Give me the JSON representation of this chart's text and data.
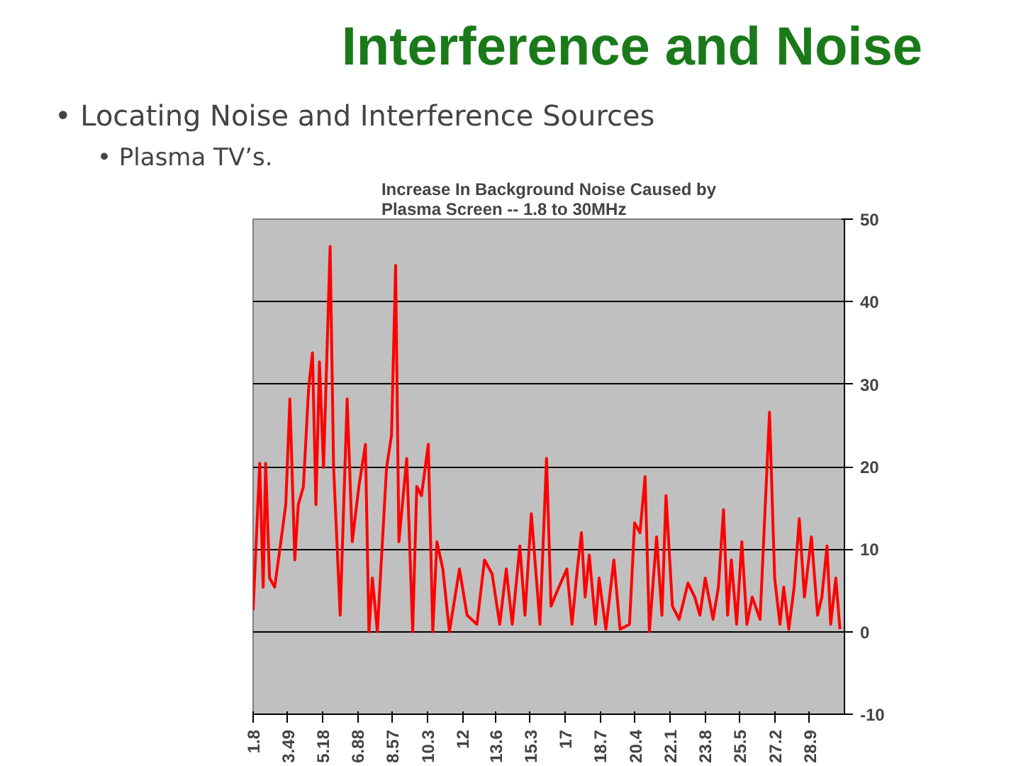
{
  "chart_data": {
    "type": "line",
    "title": "Interference and Noise",
    "subtitle": "Increase In Background Noise Caused by\nPlasma Screen -- 1.8 to 30MHz",
    "annotations": [
      "• Locating Noise and Interference Sources",
      "• Plasma TV’s."
    ],
    "x": [
      1.8,
      2.12,
      2.29,
      2.41,
      2.6,
      2.85,
      3.15,
      3.39,
      3.59,
      3.83,
      4.0,
      4.25,
      4.5,
      4.69,
      4.86,
      5.03,
      5.23,
      5.55,
      5.72,
      6.04,
      6.38,
      6.63,
      6.95,
      7.27,
      7.44,
      7.61,
      7.85,
      8.3,
      8.54,
      8.74,
      8.9,
      9.28,
      9.57,
      9.77,
      10.0,
      10.33,
      10.55,
      10.75,
      11.04,
      11.36,
      11.85,
      12.22,
      12.7,
      13.07,
      13.44,
      13.81,
      14.13,
      14.42,
      14.79,
      15.04,
      15.35,
      15.77,
      16.09,
      16.31,
      16.69,
      17.08,
      17.33,
      17.59,
      17.79,
      17.97,
      18.17,
      18.48,
      18.65,
      18.98,
      19.37,
      19.67,
      20.13,
      20.38,
      20.64,
      20.89,
      21.1,
      21.45,
      21.71,
      21.91,
      22.22,
      22.55,
      22.98,
      23.31,
      23.56,
      23.82,
      24.2,
      24.46,
      24.71,
      24.91,
      25.09,
      25.35,
      25.6,
      25.85,
      26.11,
      26.49,
      26.95,
      27.2,
      27.46,
      27.64,
      27.89,
      28.15,
      28.4,
      28.65,
      28.99,
      29.29,
      29.5,
      29.75,
      29.93,
      30.18,
      30.38
    ],
    "series": [
      {
        "color": "#ff0000",
        "values": [
          2.6,
          20.4,
          5.4,
          20.4,
          6.5,
          5.4,
          10.9,
          15.4,
          28.2,
          8.7,
          15.4,
          17.6,
          29.4,
          33.8,
          15.4,
          32.7,
          19.9,
          46.7,
          19.9,
          2.0,
          28.2,
          10.9,
          17.6,
          22.7,
          0,
          6.5,
          0,
          19.9,
          23.8,
          44.4,
          10.9,
          21,
          0,
          17.6,
          16.5,
          22.7,
          0,
          10.9,
          7.6,
          0,
          7.6,
          2.0,
          0.9,
          8.7,
          7.0,
          0.9,
          7.6,
          0.9,
          10.4,
          2.0,
          14.3,
          0.9,
          21,
          3.1,
          5.4,
          7.6,
          0.9,
          7.6,
          12,
          4.2,
          9.3,
          0.9,
          6.5,
          0.3,
          8.7,
          0.3,
          0.9,
          13.2,
          12,
          18.8,
          0,
          11.5,
          2,
          16.5,
          3.1,
          1.5,
          5.9,
          4.2,
          2,
          6.5,
          1.5,
          5.4,
          14.8,
          2,
          8.7,
          0.9,
          10.9,
          0.9,
          4.2,
          1.5,
          26.6,
          6.5,
          0.9,
          5.4,
          0.3,
          5.4,
          13.7,
          4.2,
          11.5,
          2,
          4.2,
          10.4,
          0.9,
          6.5,
          0.3
        ]
      }
    ],
    "xlim": [
      1.8,
      30.6
    ],
    "xticks": [
      1.8,
      3.49,
      5.18,
      6.88,
      8.57,
      10.3,
      12,
      13.6,
      15.3,
      17,
      18.7,
      20.4,
      22.1,
      23.8,
      25.5,
      27.2,
      28.9
    ],
    "ylim": [
      -10,
      50
    ],
    "yticks": [
      -10,
      0,
      10,
      20,
      30,
      40,
      50
    ],
    "grid": "y"
  }
}
